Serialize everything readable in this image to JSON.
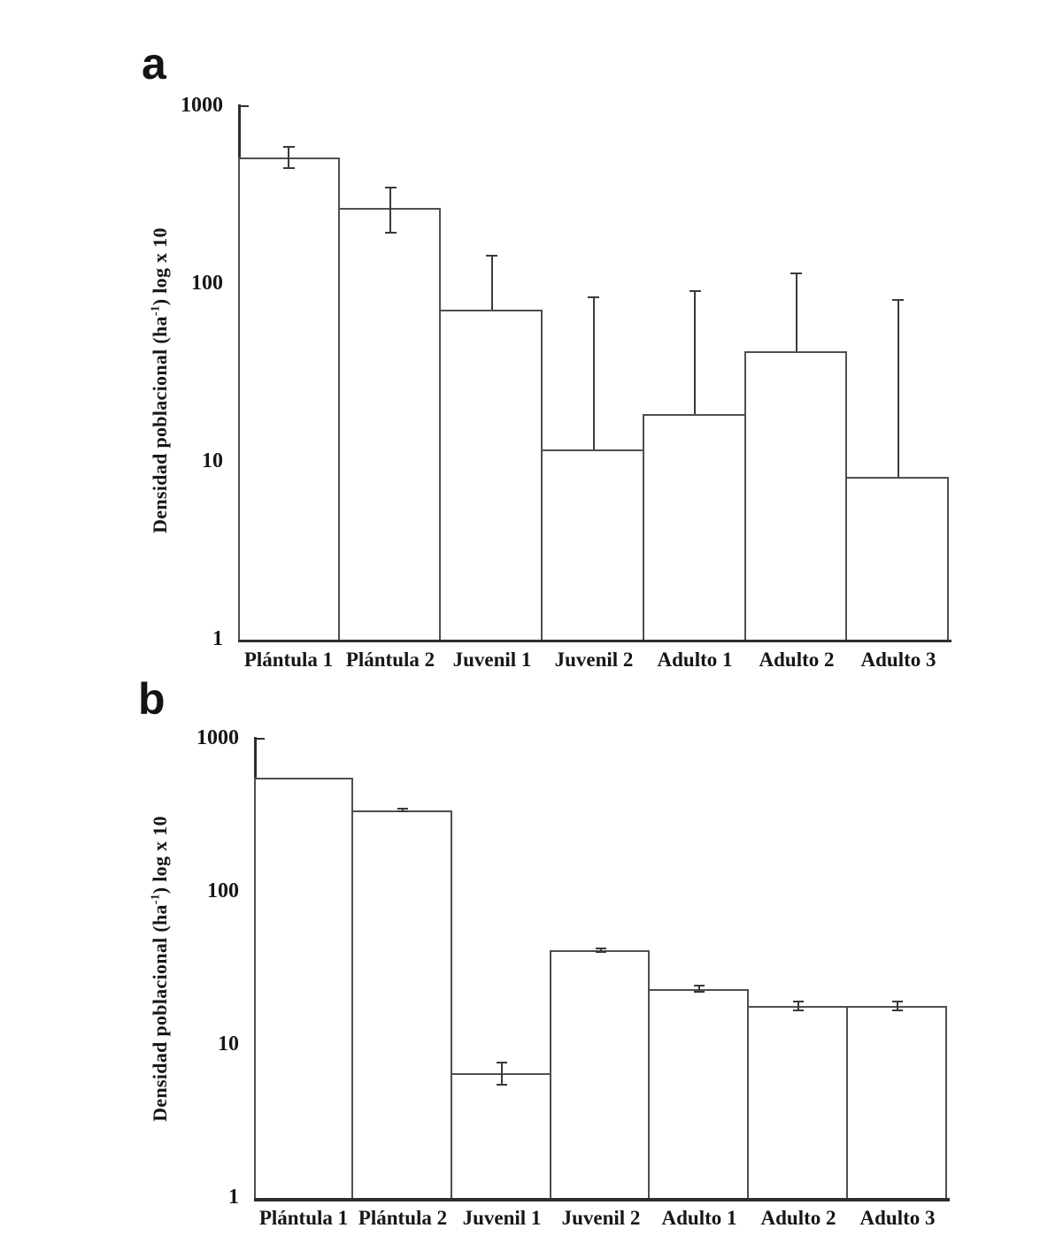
{
  "figure": {
    "background": "#ffffff",
    "description": "Two-panel bar figure (a, b) of population density per life stage on a log axis"
  },
  "colors": {
    "axis": "#2e2e2e",
    "bar_border": "#4f4f4f",
    "bar_fill": "#ffffff",
    "error_bar": "#3a3a3a",
    "text": "#161616"
  },
  "chart_data": [
    {
      "type": "bar",
      "panel": "a",
      "ylabel": "Densidad poblacional (ha⁻¹) log x 10",
      "ylabel_parts": {
        "prefix": "Densidad poblacional (ha",
        "superscript": "-1",
        "suffix": ") log x 10"
      },
      "yscale": "log",
      "ylim": [
        1,
        1000
      ],
      "yticks": [
        "1000",
        "100",
        "10",
        "1"
      ],
      "grid": false,
      "legend": false,
      "categories": [
        "Plántula 1",
        "Plántula 2",
        "Juvenil 1",
        "Juvenil 2",
        "Adulto 1",
        "Adulto 2",
        "Adulto 3"
      ],
      "values": [
        515,
        267,
        72,
        11.7,
        18.6,
        42,
        8.2
      ],
      "err_up": [
        590,
        350,
        144,
        84,
        91,
        115,
        81
      ],
      "err_down": [
        450,
        195,
        null,
        null,
        null,
        null,
        null
      ]
    },
    {
      "type": "bar",
      "panel": "b",
      "ylabel": "Densidad poblacional (ha⁻¹) log x 10",
      "ylabel_parts": {
        "prefix": "Densidad poblacional (ha",
        "superscript": "-1",
        "suffix": ") log x 10"
      },
      "yscale": "log",
      "ylim": [
        1,
        1000
      ],
      "yticks": [
        "1000",
        "100",
        "10",
        "1"
      ],
      "grid": false,
      "legend": false,
      "categories": [
        "Plántula 1",
        "Plántula 2",
        "Juvenil 1",
        "Juvenil 2",
        "Adulto 1",
        "Adulto 2",
        "Adulto 3"
      ],
      "values": [
        557,
        340,
        6.5,
        41.5,
        23.2,
        18,
        18
      ],
      "err_up": [
        null,
        348,
        7.7,
        42.8,
        24.3,
        19.3,
        19.3
      ],
      "err_down": [
        null,
        334,
        5.5,
        40.5,
        22.2,
        16.8,
        16.9
      ]
    }
  ]
}
